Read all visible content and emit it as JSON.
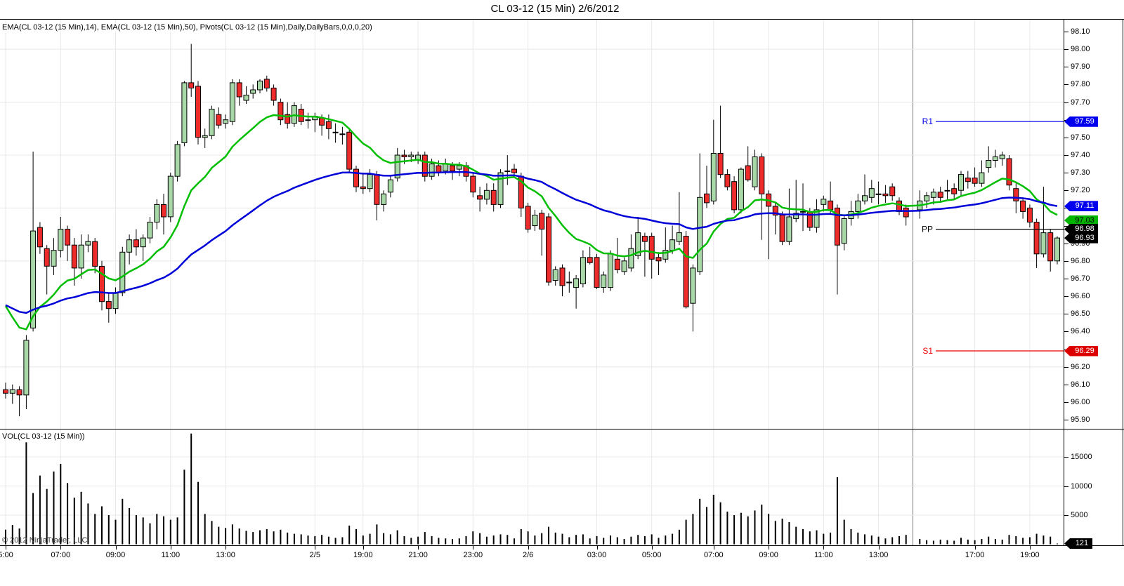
{
  "window": {
    "title": "CL 03-12 (15 Min)  2/6/2012"
  },
  "price_panel": {
    "indicator_label": "EMA(CL 03-12 (15 Min),14), EMA(CL 03-12 (15 Min),50), Pivots(CL 03-12 (15 Min),Daily,DailyBars,0,0,0,20)",
    "axis_tick_min": 95.9,
    "axis_tick_max": 98.1,
    "axis_tick_step": 0.1,
    "grid_prices": [
      98.0,
      97.7,
      97.4,
      97.1,
      96.8,
      96.5,
      96.2
    ],
    "pivots": [
      {
        "label": "R1",
        "price": 97.59,
        "color": "#0000ee"
      },
      {
        "label": "PP",
        "price": 96.98,
        "color": "#000000"
      },
      {
        "label": "S1",
        "price": 96.29,
        "color": "#ee0000"
      }
    ],
    "markers": [
      {
        "value": "97.59",
        "price": 97.59,
        "bg": "#0000ee",
        "fg": "#ffffff"
      },
      {
        "value": "97.11",
        "price": 97.11,
        "bg": "#0000ee",
        "fg": "#ffffff"
      },
      {
        "value": "97.03",
        "price": 97.03,
        "bg": "#00b400",
        "fg": "#000000"
      },
      {
        "value": "96.98",
        "price": 96.98,
        "bg": "#000000",
        "fg": "#ffffff"
      },
      {
        "value": "96.93",
        "price": 96.93,
        "bg": "#000000",
        "fg": "#ffffff"
      },
      {
        "value": "96.29",
        "price": 96.29,
        "bg": "#dd0000",
        "fg": "#ffffff"
      }
    ]
  },
  "volume_panel": {
    "label": "VOL(CL 03-12 (15 Min))",
    "axis_ticks": [
      15000,
      10000,
      5000
    ],
    "marker": {
      "value": "121",
      "bg": "#000000",
      "fg": "#ffffff"
    },
    "copyright": "© 2012 NinjaTrader, LLC"
  },
  "time_axis": {
    "labels": [
      {
        "text": "5:00",
        "idx": 0
      },
      {
        "text": "07:00",
        "idx": 8
      },
      {
        "text": "09:00",
        "idx": 16
      },
      {
        "text": "11:00",
        "idx": 24
      },
      {
        "text": "13:00",
        "idx": 32
      },
      {
        "text": "2/5",
        "idx": 45
      },
      {
        "text": "19:00",
        "idx": 52
      },
      {
        "text": "21:00",
        "idx": 60
      },
      {
        "text": "23:00",
        "idx": 68
      },
      {
        "text": "2/6",
        "idx": 76
      },
      {
        "text": "03:00",
        "idx": 86
      },
      {
        "text": "05:00",
        "idx": 94
      },
      {
        "text": "07:00",
        "idx": 103
      },
      {
        "text": "09:00",
        "idx": 111
      },
      {
        "text": "11:00",
        "idx": 119
      },
      {
        "text": "13:00",
        "idx": 127
      },
      {
        "text": "17:00",
        "idx": 141
      },
      {
        "text": "19:00",
        "idx": 149
      }
    ]
  },
  "colors": {
    "candle_up": "#a8d8a8",
    "candle_down": "#ee2b2b",
    "candle_outline": "#000000",
    "ema14": "#00be00",
    "ema50": "#0000d8",
    "grid": "#e8e8e8",
    "session_break": "#777777",
    "volume_bar": "#000000",
    "background": "#ffffff"
  },
  "chart_data": {
    "type": "candlestick+volume",
    "instrument": "CL 03-12",
    "interval": "15 Min",
    "date": "2/6/2012",
    "price_range_shown": [
      95.9,
      98.1
    ],
    "volume_range_shown": [
      0,
      15000
    ],
    "bar_format": [
      "open",
      "high",
      "low",
      "close",
      "volume"
    ],
    "session_break_note": "null entry = session gap with darker vertical line",
    "emas": [
      {
        "period": 14,
        "seed": 96.62
      },
      {
        "period": 50,
        "seed": 96.57
      }
    ],
    "bars": [
      [
        96.07,
        96.11,
        96.02,
        96.05,
        2500
      ],
      [
        96.05,
        96.1,
        95.99,
        96.07,
        3300
      ],
      [
        96.07,
        96.09,
        95.92,
        96.04,
        2700
      ],
      [
        96.04,
        96.38,
        95.96,
        96.35,
        17500
      ],
      [
        96.42,
        97.42,
        96.4,
        96.97,
        8800
      ],
      [
        96.99,
        97.02,
        96.84,
        96.88,
        11800
      ],
      [
        96.87,
        96.89,
        96.61,
        96.77,
        9500
      ],
      [
        96.77,
        96.93,
        96.72,
        96.86,
        12500
      ],
      [
        96.86,
        97.05,
        96.82,
        96.98,
        13800
      ],
      [
        96.98,
        97.0,
        96.8,
        96.89,
        10500
      ],
      [
        96.89,
        96.93,
        96.66,
        96.76,
        8000
      ],
      [
        96.76,
        96.95,
        96.7,
        96.89,
        9000
      ],
      [
        96.89,
        96.95,
        96.85,
        96.91,
        7000
      ],
      [
        96.91,
        96.93,
        96.73,
        96.77,
        5200
      ],
      [
        96.77,
        96.8,
        96.52,
        96.57,
        6500
      ],
      [
        96.57,
        96.62,
        96.45,
        96.53,
        5000
      ],
      [
        96.53,
        96.65,
        96.5,
        96.62,
        4200
      ],
      [
        96.62,
        96.88,
        96.6,
        96.85,
        7800
      ],
      [
        96.85,
        96.95,
        96.78,
        96.92,
        6200
      ],
      [
        96.92,
        96.98,
        96.83,
        96.88,
        5000
      ],
      [
        96.88,
        96.95,
        96.8,
        96.93,
        4600
      ],
      [
        96.93,
        97.05,
        96.9,
        97.02,
        3600
      ],
      [
        97.02,
        97.15,
        96.98,
        97.12,
        5200
      ],
      [
        97.12,
        97.18,
        96.95,
        97.05,
        4800
      ],
      [
        97.05,
        97.3,
        97.02,
        97.28,
        4200
      ],
      [
        97.28,
        97.48,
        97.25,
        97.46,
        4600
      ],
      [
        97.47,
        97.82,
        97.45,
        97.81,
        12800
      ],
      [
        97.81,
        98.03,
        97.73,
        97.78,
        19000
      ],
      [
        97.79,
        97.82,
        97.46,
        97.5,
        10700
      ],
      [
        97.5,
        97.55,
        97.44,
        97.51,
        5200
      ],
      [
        97.51,
        97.68,
        97.49,
        97.66,
        4000
      ],
      [
        97.63,
        97.67,
        97.55,
        97.57,
        3000
      ],
      [
        97.58,
        97.63,
        97.55,
        97.6,
        2800
      ],
      [
        97.59,
        97.83,
        97.57,
        97.81,
        3400
      ],
      [
        97.81,
        97.83,
        97.68,
        97.73,
        2700
      ],
      [
        97.71,
        97.79,
        97.69,
        97.74,
        2300
      ],
      [
        97.75,
        97.8,
        97.72,
        97.77,
        2100
      ],
      [
        97.77,
        97.83,
        97.75,
        97.82,
        2400
      ],
      [
        97.83,
        97.85,
        97.76,
        97.78,
        2600
      ],
      [
        97.78,
        97.8,
        97.68,
        97.71,
        2200
      ],
      [
        97.7,
        97.72,
        97.57,
        97.6,
        2500
      ],
      [
        97.63,
        97.7,
        97.55,
        97.58,
        2000
      ],
      [
        97.58,
        97.7,
        97.56,
        97.68,
        1800
      ],
      [
        97.66,
        97.69,
        97.57,
        97.59,
        1700
      ],
      [
        97.6,
        97.64,
        97.55,
        97.6,
        1500
      ],
      [
        97.6,
        97.64,
        97.53,
        97.62,
        1400
      ],
      [
        97.61,
        97.63,
        97.51,
        97.57,
        1600
      ],
      [
        97.59,
        97.63,
        97.49,
        97.55,
        1300
      ],
      [
        97.53,
        97.58,
        97.47,
        97.53,
        1100
      ],
      [
        97.52,
        97.56,
        97.46,
        97.52,
        1200
      ],
      [
        97.53,
        97.55,
        97.3,
        97.32,
        3200
      ],
      [
        97.32,
        97.34,
        97.19,
        97.22,
        2600
      ],
      [
        97.22,
        97.3,
        97.18,
        97.21,
        1500
      ],
      [
        97.21,
        97.32,
        97.19,
        97.29,
        1800
      ],
      [
        97.29,
        97.31,
        97.03,
        97.12,
        3400
      ],
      [
        97.12,
        97.2,
        97.08,
        97.18,
        1900
      ],
      [
        97.19,
        97.28,
        97.16,
        97.26,
        1700
      ],
      [
        97.27,
        97.44,
        97.25,
        97.4,
        2400
      ],
      [
        97.4,
        97.43,
        97.35,
        97.39,
        1400
      ],
      [
        97.39,
        97.42,
        97.36,
        97.4,
        1100
      ],
      [
        97.37,
        97.42,
        97.35,
        97.4,
        1300
      ],
      [
        97.4,
        97.42,
        97.25,
        97.28,
        2100
      ],
      [
        97.28,
        97.38,
        97.26,
        97.35,
        1400
      ],
      [
        97.34,
        97.37,
        97.28,
        97.3,
        1100
      ],
      [
        97.31,
        97.38,
        97.29,
        97.35,
        1000
      ],
      [
        97.34,
        97.36,
        97.26,
        97.31,
        900
      ],
      [
        97.32,
        97.36,
        97.28,
        97.34,
        1000
      ],
      [
        97.34,
        97.36,
        97.25,
        97.28,
        1400
      ],
      [
        97.28,
        97.3,
        97.16,
        97.19,
        2200
      ],
      [
        97.17,
        97.22,
        97.08,
        97.15,
        1900
      ],
      [
        97.15,
        97.24,
        97.12,
        97.2,
        1300
      ],
      [
        97.2,
        97.24,
        97.08,
        97.12,
        1500
      ],
      [
        97.12,
        97.32,
        97.1,
        97.3,
        1700
      ],
      [
        97.31,
        97.4,
        97.23,
        97.31,
        1600
      ],
      [
        97.32,
        97.35,
        97.28,
        97.3,
        1000
      ],
      [
        97.28,
        97.3,
        97.05,
        97.1,
        2600
      ],
      [
        97.11,
        97.13,
        96.96,
        96.98,
        2200
      ],
      [
        97.0,
        97.09,
        96.97,
        97.06,
        1500
      ],
      [
        97.07,
        97.09,
        96.83,
        96.98,
        1900
      ],
      [
        97.05,
        97.07,
        96.66,
        96.68,
        3000
      ],
      [
        96.69,
        96.77,
        96.66,
        96.75,
        2000
      ],
      [
        96.76,
        96.78,
        96.6,
        96.66,
        1800
      ],
      [
        96.68,
        96.74,
        96.62,
        96.68,
        1200
      ],
      [
        96.65,
        96.72,
        96.53,
        96.7,
        1600
      ],
      [
        96.67,
        96.86,
        96.65,
        96.82,
        1700
      ],
      [
        96.82,
        96.88,
        96.78,
        96.79,
        1000
      ],
      [
        96.82,
        96.84,
        96.64,
        96.65,
        1400
      ],
      [
        96.65,
        96.74,
        96.62,
        96.72,
        1100
      ],
      [
        96.65,
        96.86,
        96.63,
        96.84,
        1500
      ],
      [
        96.81,
        96.93,
        96.73,
        96.75,
        1200
      ],
      [
        96.74,
        96.82,
        96.72,
        96.8,
        900
      ],
      [
        96.76,
        96.95,
        96.74,
        96.87,
        1300
      ],
      [
        96.83,
        97.05,
        96.81,
        96.96,
        1600
      ],
      [
        96.94,
        96.96,
        96.71,
        96.91,
        1400
      ],
      [
        96.94,
        96.96,
        96.7,
        96.81,
        1700
      ],
      [
        96.82,
        96.85,
        96.72,
        96.8,
        1100
      ],
      [
        96.81,
        96.99,
        96.79,
        96.86,
        1500
      ],
      [
        96.86,
        97.0,
        96.84,
        96.92,
        1800
      ],
      [
        96.91,
        97.19,
        96.89,
        96.96,
        2500
      ],
      [
        96.94,
        96.97,
        96.53,
        96.54,
        4200
      ],
      [
        96.56,
        96.78,
        96.4,
        96.76,
        5200
      ],
      [
        96.74,
        97.41,
        96.72,
        97.16,
        7800
      ],
      [
        97.18,
        97.34,
        97.1,
        97.13,
        6400
      ],
      [
        97.14,
        97.6,
        97.12,
        97.41,
        8500
      ],
      [
        97.41,
        97.68,
        97.27,
        97.29,
        7200
      ],
      [
        97.29,
        97.32,
        97.2,
        97.22,
        5600
      ],
      [
        97.25,
        97.28,
        97.07,
        97.09,
        5000
      ],
      [
        97.09,
        97.33,
        97.07,
        97.32,
        5400
      ],
      [
        97.34,
        97.45,
        97.25,
        97.26,
        4800
      ],
      [
        97.22,
        97.43,
        97.2,
        97.39,
        5800
      ],
      [
        97.39,
        97.41,
        96.92,
        97.18,
        6800
      ],
      [
        97.18,
        97.2,
        96.81,
        97.11,
        5200
      ],
      [
        97.11,
        97.13,
        96.95,
        97.06,
        4000
      ],
      [
        97.06,
        97.08,
        96.89,
        96.91,
        4400
      ],
      [
        96.91,
        97.21,
        96.89,
        97.05,
        3800
      ],
      [
        97.04,
        97.26,
        97.02,
        97.07,
        3000
      ],
      [
        97.08,
        97.24,
        96.97,
        97.08,
        2600
      ],
      [
        97.08,
        97.1,
        96.97,
        96.99,
        2200
      ],
      [
        96.99,
        97.15,
        96.96,
        97.09,
        2400
      ],
      [
        97.12,
        97.17,
        97.08,
        97.15,
        1800
      ],
      [
        97.14,
        97.25,
        97.07,
        97.09,
        2000
      ],
      [
        97.1,
        97.12,
        96.61,
        96.89,
        11500
      ],
      [
        96.9,
        97.06,
        96.86,
        97.04,
        4200
      ],
      [
        97.04,
        97.14,
        97.0,
        97.08,
        2600
      ],
      [
        97.08,
        97.18,
        97.04,
        97.14,
        2000
      ],
      [
        97.14,
        97.29,
        97.12,
        97.17,
        1700
      ],
      [
        97.16,
        97.26,
        97.13,
        97.21,
        1500
      ],
      [
        97.18,
        97.25,
        97.12,
        97.18,
        1300
      ],
      [
        97.18,
        97.23,
        97.13,
        97.17,
        1000
      ],
      [
        97.22,
        97.24,
        97.14,
        97.17,
        1200
      ],
      [
        97.14,
        97.16,
        97.06,
        97.08,
        1400
      ],
      [
        97.1,
        97.12,
        97.0,
        97.05,
        1600
      ],
      null,
      [
        97.09,
        97.2,
        97.04,
        97.14,
        900
      ],
      [
        97.14,
        97.19,
        97.1,
        97.17,
        700
      ],
      [
        97.16,
        97.21,
        97.12,
        97.19,
        600
      ],
      [
        97.19,
        97.22,
        97.13,
        97.16,
        800
      ],
      [
        97.2,
        97.26,
        97.15,
        97.2,
        700
      ],
      [
        97.21,
        97.24,
        97.15,
        97.18,
        600
      ],
      [
        97.2,
        97.31,
        97.17,
        97.29,
        1100
      ],
      [
        97.27,
        97.31,
        97.21,
        97.25,
        800
      ],
      [
        97.27,
        97.33,
        97.22,
        97.24,
        700
      ],
      [
        97.24,
        97.37,
        97.22,
        97.3,
        900
      ],
      [
        97.33,
        97.45,
        97.3,
        97.37,
        1300
      ],
      [
        97.37,
        97.43,
        97.33,
        97.39,
        900
      ],
      [
        97.38,
        97.42,
        97.34,
        97.4,
        800
      ],
      [
        97.38,
        97.4,
        97.2,
        97.23,
        1600
      ],
      [
        97.21,
        97.24,
        97.07,
        97.14,
        1400
      ],
      [
        97.14,
        97.16,
        97.04,
        97.08,
        1100
      ],
      [
        97.1,
        97.12,
        96.99,
        97.02,
        1200
      ],
      [
        97.02,
        97.04,
        96.76,
        96.84,
        1800
      ],
      [
        96.84,
        97.22,
        96.82,
        96.96,
        1500
      ],
      [
        96.96,
        96.98,
        96.74,
        96.8,
        1300
      ],
      [
        96.8,
        96.94,
        96.78,
        96.93,
        121
      ]
    ]
  }
}
